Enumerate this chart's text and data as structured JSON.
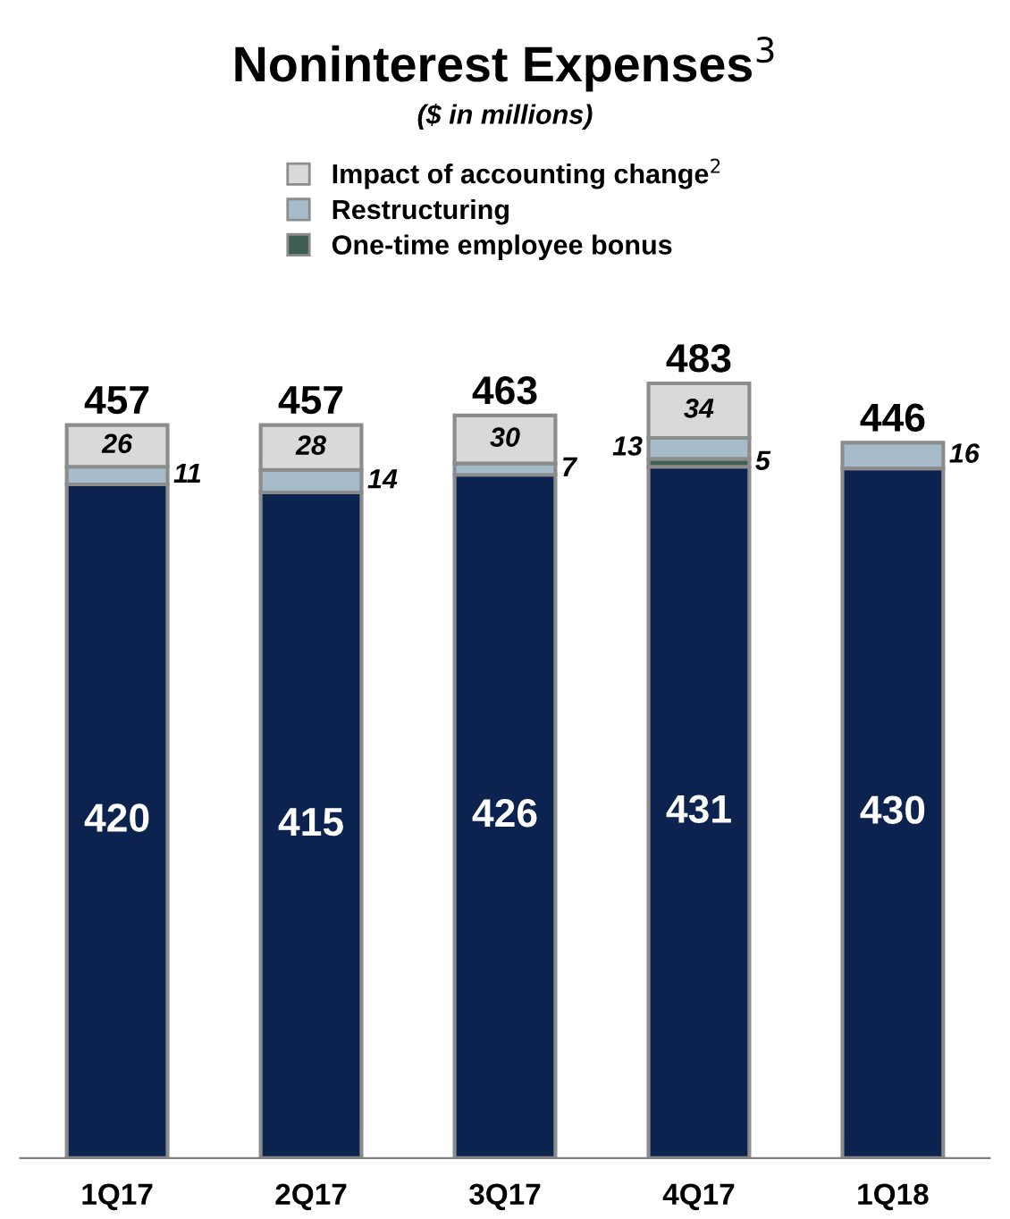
{
  "chart_data": {
    "type": "bar",
    "title": "Noninterest Expenses$^{3}$",
    "subtitle": "($ in millions)",
    "categories": [
      "1Q17",
      "2Q17",
      "3Q17",
      "4Q17",
      "1Q18"
    ],
    "stacked": true,
    "data_labels": true,
    "tick_labels": "x",
    "grid": false,
    "legend": "top",
    "series": [
      {
        "color": "#0c2350",
        "values": [
          420,
          415,
          426,
          431,
          430
        ]
      },
      {
        "name": "One-time employee bonus",
        "color": "#3f5f55",
        "values": [
          null,
          null,
          null,
          5,
          null
        ]
      },
      {
        "name": "Restructuring",
        "color": "#a7bccb",
        "values": [
          11,
          14,
          7,
          13,
          16
        ]
      },
      {
        "name": "Impact of accounting change$^{2}$",
        "color": "#d9d9d9",
        "values": [
          26,
          28,
          30,
          34,
          null
        ]
      }
    ],
    "totals": [
      "457",
      "457",
      "463",
      "483",
      "446"
    ]
  }
}
